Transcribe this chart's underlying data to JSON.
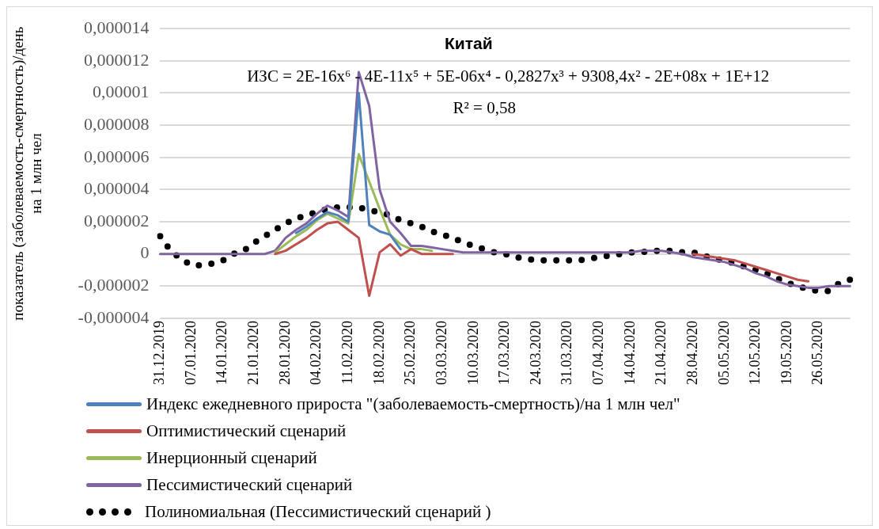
{
  "chart_data": {
    "type": "line",
    "title": "Китай",
    "ylabel": "показатель (заболеваемость-смертность)/день\nна 1 млн чел",
    "annotations": [
      "ИЗС = 2E-16x⁶ - 4E-11x⁵ + 5E-06x⁴ - 0,2827x³ + 9308,4x² - 2E+08x + 1E+12",
      "R² = 0,58"
    ],
    "categories": [
      "31.12.2019",
      null,
      null,
      "07.01.2020",
      null,
      null,
      "14.01.2020",
      null,
      null,
      "21.01.2020",
      null,
      null,
      "28.01.2020",
      null,
      null,
      "04.02.2020",
      null,
      null,
      "11.02.2020",
      null,
      null,
      "18.02.2020",
      null,
      null,
      "25.02.2020",
      null,
      null,
      "03.03.2020",
      null,
      null,
      "10.03.2020",
      null,
      null,
      "17.03.2020",
      null,
      null,
      "24.03.2020",
      null,
      null,
      "31.03.2020",
      null,
      null,
      "07.04.2020",
      null,
      null,
      "14.04.2020",
      null,
      null,
      "21.04.2020",
      null,
      null,
      "28.04.2020",
      null,
      null,
      "05.05.2020",
      null,
      null,
      "12.05.2020",
      null,
      null,
      "19.05.2020",
      null,
      null,
      "26.05.2020",
      null,
      null,
      null
    ],
    "ylim": [
      -4e-06,
      1.4e-05
    ],
    "yticks": [
      {
        "value": -4e-06,
        "label": "-0,000004"
      },
      {
        "value": -2e-06,
        "label": "-0,000002"
      },
      0,
      {
        "value": 2e-06,
        "label": "0,000002"
      },
      {
        "value": 4e-06,
        "label": "0,000004"
      },
      {
        "value": 6e-06,
        "label": "0,000006"
      },
      {
        "value": 8e-06,
        "label": "0,000008"
      },
      {
        "value": 1e-05,
        "label": "0,00001"
      },
      {
        "value": 1.2e-05,
        "label": "0,000012"
      },
      {
        "value": 1.4e-05,
        "label": "0,000014"
      }
    ],
    "grid": "y",
    "legend": "bottom",
    "marker": "none",
    "series": [
      {
        "name": "Индекс ежедневного прироста \"(заболеваемость-смертность)/на 1 млн чел\"",
        "color": "#4f81bd",
        "values": [
          null,
          null,
          null,
          null,
          null,
          null,
          null,
          null,
          null,
          null,
          null,
          null,
          null,
          1.3e-06,
          1.7e-06,
          2.2e-06,
          2.6e-06,
          2.4e-06,
          2e-06,
          1e-05,
          1.8e-06,
          1.4e-06,
          1.2e-06,
          3e-07,
          null,
          null,
          null,
          null,
          null,
          null,
          null,
          null,
          null,
          null,
          null,
          null,
          null,
          null,
          null,
          null,
          null,
          null,
          null,
          null,
          null,
          null,
          null,
          null,
          null,
          null,
          null,
          null,
          null,
          null,
          null,
          null,
          null,
          null,
          null,
          null,
          null,
          null,
          null,
          null,
          null,
          null,
          null
        ]
      },
      {
        "name": "Оптимистический сценарий",
        "color": "#c0504d",
        "values": [
          null,
          null,
          null,
          null,
          null,
          null,
          null,
          null,
          null,
          null,
          null,
          0,
          2e-07,
          6e-07,
          1e-06,
          1.5e-06,
          1.9e-06,
          2e-06,
          1.5e-06,
          1e-06,
          -2.6e-06,
          1e-07,
          6e-07,
          -1e-07,
          3e-07,
          0,
          0,
          0,
          0,
          null,
          null,
          null,
          null,
          null,
          null,
          null,
          null,
          null,
          null,
          null,
          null,
          null,
          null,
          null,
          null,
          null,
          null,
          null,
          null,
          null,
          null,
          0,
          -1e-07,
          -2e-07,
          -3e-07,
          -4e-07,
          -6e-07,
          -8e-07,
          -1e-06,
          -1.2e-06,
          -1.4e-06,
          -1.6e-06,
          -1.7e-06,
          null,
          null,
          null,
          null
        ]
      },
      {
        "name": "Инерционный сценарий",
        "color": "#9bbb59",
        "values": [
          null,
          null,
          null,
          null,
          null,
          null,
          null,
          null,
          null,
          null,
          null,
          1e-07,
          6e-07,
          1.1e-06,
          1.5e-06,
          2.1e-06,
          2.5e-06,
          2.2e-06,
          1.9e-06,
          6.2e-06,
          4.5e-06,
          2.8e-06,
          1.2e-06,
          6e-07,
          3e-07,
          3e-07,
          2e-07,
          null,
          null,
          null,
          null,
          null,
          null,
          null,
          null,
          null,
          null,
          null,
          null,
          null,
          null,
          null,
          null,
          null,
          null,
          null,
          null,
          null,
          null,
          null,
          null,
          null,
          null,
          null,
          null,
          null,
          null,
          null,
          null,
          null,
          null,
          null,
          null,
          null,
          null,
          null,
          null
        ]
      },
      {
        "name": "Пессимистический сценарий",
        "color": "#8064a2",
        "values": [
          0,
          0,
          0,
          0,
          0,
          0,
          0,
          0,
          0,
          0,
          0,
          2e-07,
          1e-06,
          1.5e-06,
          1.9e-06,
          2.5e-06,
          3e-06,
          2.7e-06,
          2.3e-06,
          1.13e-05,
          9.2e-06,
          4e-06,
          2e-06,
          1.3e-06,
          5e-07,
          5e-07,
          4e-07,
          3e-07,
          2e-07,
          1e-07,
          1e-07,
          1e-07,
          1e-07,
          1e-07,
          1e-07,
          1e-07,
          1e-07,
          1e-07,
          1e-07,
          1e-07,
          1e-07,
          1e-07,
          1e-07,
          1e-07,
          1e-07,
          1e-07,
          2e-07,
          2e-07,
          2e-07,
          1e-07,
          0,
          -2e-07,
          -3e-07,
          -4e-07,
          -5e-07,
          -7e-07,
          -9e-07,
          -1.2e-06,
          -1.4e-06,
          -1.7e-06,
          -1.9e-06,
          -2e-06,
          -2.1e-06,
          -2.1e-06,
          -2e-06,
          -2e-06,
          -2e-06
        ]
      },
      {
        "name": "Полиномиальная (Пессимистический сценарий )",
        "color": "#000000",
        "line_style": "dotted",
        "values": [
          1.1e-06,
          2e-07,
          -3e-07,
          -7e-07,
          -7e-07,
          -6e-07,
          -4e-07,
          0,
          2e-07,
          7e-07,
          1.1e-06,
          1.5e-06,
          1.9e-06,
          2.2e-06,
          2.4e-06,
          2.6e-06,
          2.8e-06,
          2.9e-06,
          2.9e-06,
          2.9e-06,
          2.7e-06,
          2.6e-06,
          2.4e-06,
          2.1e-06,
          1.9e-06,
          1.7e-06,
          1.4e-06,
          1.2e-06,
          1e-06,
          7e-07,
          5e-07,
          3e-07,
          1e-07,
          0,
          -2e-07,
          -3e-07,
          -4e-07,
          -4e-07,
          -4e-07,
          -4e-07,
          -4e-07,
          -3e-07,
          -2e-07,
          -1e-07,
          0,
          1e-07,
          1e-07,
          2e-07,
          2e-07,
          2e-07,
          1e-07,
          1e-07,
          -1e-07,
          -3e-07,
          -4e-07,
          -6e-07,
          -8e-07,
          -1e-06,
          -1.2e-06,
          -1.5e-06,
          -1.8e-06,
          -2e-06,
          -2.2e-06,
          -2.3e-06,
          -2.3e-06,
          -1.8e-06,
          -1.6e-06
        ]
      }
    ]
  }
}
